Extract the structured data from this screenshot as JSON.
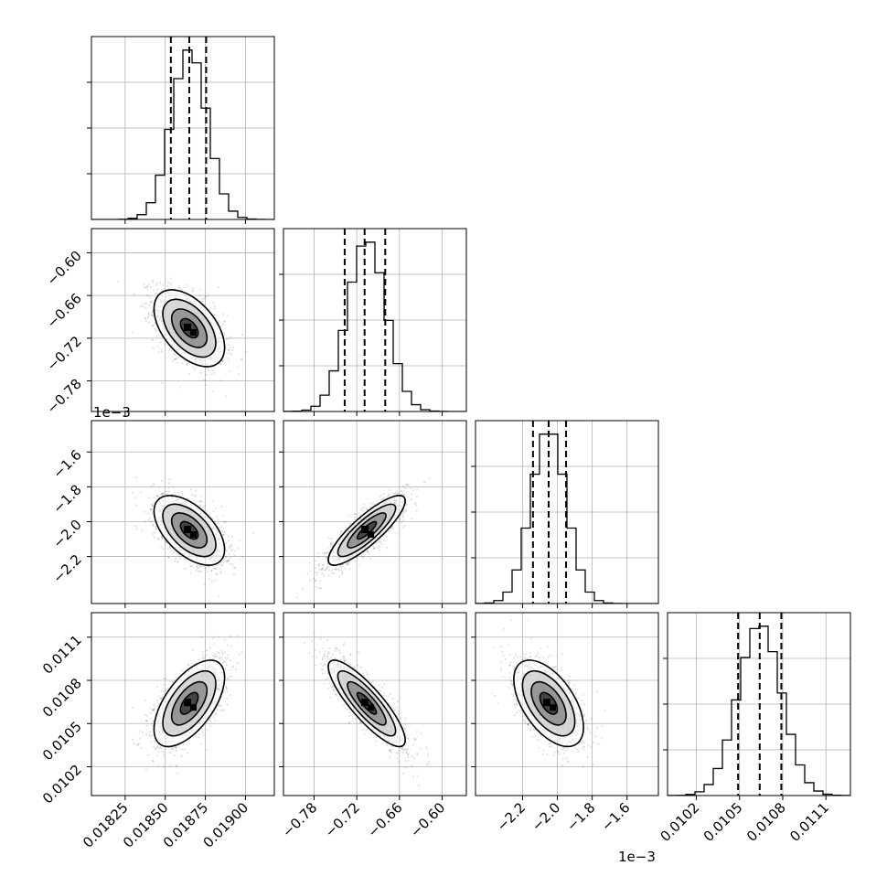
{
  "chart_data": {
    "type": "corner",
    "params": [
      {
        "name": "",
        "mean": 0.01865,
        "sd": 0.00011,
        "range": [
          0.01804,
          0.01918
        ],
        "ticks": [
          0.01825,
          0.0185,
          0.01875,
          0.019
        ],
        "tick_labels": [
          "0.01825",
          "0.01850",
          "0.01875",
          "0.01900"
        ],
        "quantiles": [
          0.018535,
          0.01865,
          0.018755
        ],
        "offset_label": ""
      },
      {
        "name": "",
        "mean": -0.000706,
        "sd": 2.7e-05,
        "range": [
          -0.000823,
          -0.000566
        ],
        "ticks": [
          -0.00078,
          -0.00072,
          -0.00066,
          -0.0006
        ],
        "tick_labels": [
          "−0.78",
          "−0.72",
          "−0.66",
          "−0.60"
        ],
        "quantiles": [
          -0.000737,
          -0.000709,
          -0.00068
        ],
        "offset_label": "1e−3"
      },
      {
        "name": "",
        "mean": -0.00205,
        "sd": 0.0001,
        "range": [
          -0.00247,
          -0.00142
        ],
        "ticks": [
          -0.0022,
          -0.002,
          -0.0018,
          -0.0016
        ],
        "tick_labels": [
          "−2.2",
          "−2.0",
          "−1.8",
          "−1.6"
        ],
        "quantiles": [
          -0.00214,
          -0.00205,
          -0.00195
        ],
        "offset_label": "1e−3"
      },
      {
        "name": "",
        "mean": 0.01064,
        "sd": 0.00015,
        "range": [
          0.01,
          0.01127
        ],
        "ticks": [
          0.0102,
          0.0105,
          0.0108,
          0.0111
        ],
        "tick_labels": [
          "0.0102",
          "0.0105",
          "0.0108",
          "0.0111"
        ],
        "quantiles": [
          0.01049,
          0.01064,
          0.01079
        ],
        "offset_label": ""
      }
    ],
    "correlations": {
      "0-1": -0.5,
      "0-2": -0.55,
      "1-2": 0.85,
      "0-3": 0.6,
      "1-3": -0.85,
      "2-3": -0.55
    },
    "quantile_levels": [
      0.16,
      0.5,
      0.84
    ],
    "contour_sigma_levels": [
      0.5,
      1.0,
      1.5,
      2.0
    ],
    "grid": true
  }
}
